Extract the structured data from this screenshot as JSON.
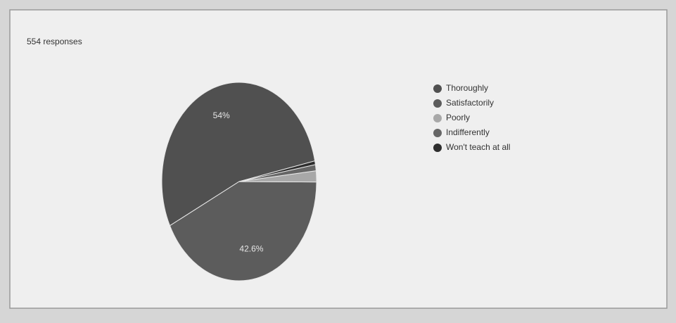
{
  "chart_data": {
    "type": "pie",
    "title": "554 responses",
    "categories": [
      "Thoroughly",
      "Satisfactorily",
      "Poorly",
      "Indifferently",
      "Won't teach at all"
    ],
    "values": [
      54,
      42.6,
      1.8,
      1,
      0.6
    ],
    "value_labels": [
      "54%",
      "42.6%",
      null,
      null,
      null
    ],
    "colors": [
      "#505050",
      "#5c5c5c",
      "#a8a8a8",
      "#666666",
      "#2e2e2e"
    ],
    "legend": "right"
  }
}
